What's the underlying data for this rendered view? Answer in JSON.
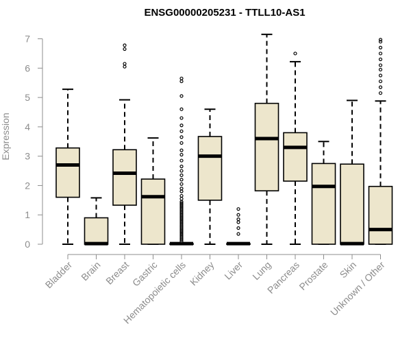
{
  "chart_data": {
    "type": "boxplot",
    "title": "ENSG00000205231 - TTLL10-AS1",
    "xlabel": "",
    "ylabel": "Expression",
    "ylim": [
      0,
      7.2
    ],
    "yticks": [
      0,
      1,
      2,
      3,
      4,
      5,
      6,
      7
    ],
    "box_fill": "#ede6cc",
    "box_stroke": "#000000",
    "axis_color": "#8c8c8c",
    "categories": [
      "Bladder",
      "Brain",
      "Breast",
      "Gastric",
      "Hematopoietic cells",
      "Kidney",
      "Liver",
      "Lung",
      "Pancreas",
      "Prostate",
      "Skin",
      "Unknown / Other"
    ],
    "boxes": [
      {
        "name": "Bladder",
        "q1": 1.6,
        "median": 2.7,
        "q3": 3.28,
        "whisker_low": 0,
        "whisker_high": 5.28,
        "outliers": []
      },
      {
        "name": "Brain",
        "q1": 0,
        "median": 0.02,
        "q3": 0.9,
        "whisker_low": 0,
        "whisker_high": 1.58,
        "outliers": []
      },
      {
        "name": "Breast",
        "q1": 1.33,
        "median": 2.42,
        "q3": 3.22,
        "whisker_low": 0,
        "whisker_high": 4.92,
        "outliers": [
          6.05,
          6.15,
          6.65,
          6.78
        ]
      },
      {
        "name": "Gastric",
        "q1": 0,
        "median": 1.62,
        "q3": 2.22,
        "whisker_low": 0,
        "whisker_high": 3.62,
        "outliers": []
      },
      {
        "name": "Hematopoietic cells",
        "q1": 0,
        "median": 0.02,
        "q3": 0.02,
        "whisker_low": 0,
        "whisker_high": 0.04,
        "outliers": [
          0.1,
          0.15,
          0.2,
          0.25,
          0.3,
          0.35,
          0.4,
          0.45,
          0.5,
          0.55,
          0.6,
          0.65,
          0.7,
          0.75,
          0.8,
          0.85,
          0.9,
          0.95,
          1.0,
          1.05,
          1.1,
          1.15,
          1.2,
          1.25,
          1.3,
          1.35,
          1.4,
          1.45,
          1.55,
          1.65,
          1.8,
          1.9,
          2.05,
          2.2,
          2.35,
          2.5,
          2.65,
          2.85,
          3.05,
          3.2,
          3.45,
          3.65,
          3.85,
          4.05,
          4.3,
          4.6,
          5.05,
          5.55,
          5.65
        ]
      },
      {
        "name": "Kidney",
        "q1": 1.5,
        "median": 3.0,
        "q3": 3.67,
        "whisker_low": 0,
        "whisker_high": 4.6,
        "outliers": []
      },
      {
        "name": "Liver",
        "q1": 0,
        "median": 0.02,
        "q3": 0.02,
        "whisker_low": 0,
        "whisker_high": 0.04,
        "outliers": [
          0.35,
          0.55,
          0.75,
          0.85,
          1.0,
          1.2
        ]
      },
      {
        "name": "Lung",
        "q1": 1.82,
        "median": 3.6,
        "q3": 4.8,
        "whisker_low": 0,
        "whisker_high": 7.15,
        "outliers": []
      },
      {
        "name": "Pancreas",
        "q1": 2.15,
        "median": 3.3,
        "q3": 3.8,
        "whisker_low": 0,
        "whisker_high": 6.22,
        "outliers": [
          6.5
        ]
      },
      {
        "name": "Prostate",
        "q1": 0,
        "median": 1.97,
        "q3": 2.75,
        "whisker_low": 0,
        "whisker_high": 3.5,
        "outliers": []
      },
      {
        "name": "Skin",
        "q1": 0,
        "median": 0.02,
        "q3": 2.73,
        "whisker_low": 0,
        "whisker_high": 4.9,
        "outliers": []
      },
      {
        "name": "Unknown / Other",
        "q1": 0,
        "median": 0.5,
        "q3": 1.97,
        "whisker_low": 0,
        "whisker_high": 4.88,
        "outliers": [
          5.15,
          5.35,
          5.55,
          5.75,
          5.95,
          6.1,
          6.3,
          6.5,
          6.7,
          6.9,
          6.97
        ]
      }
    ]
  }
}
